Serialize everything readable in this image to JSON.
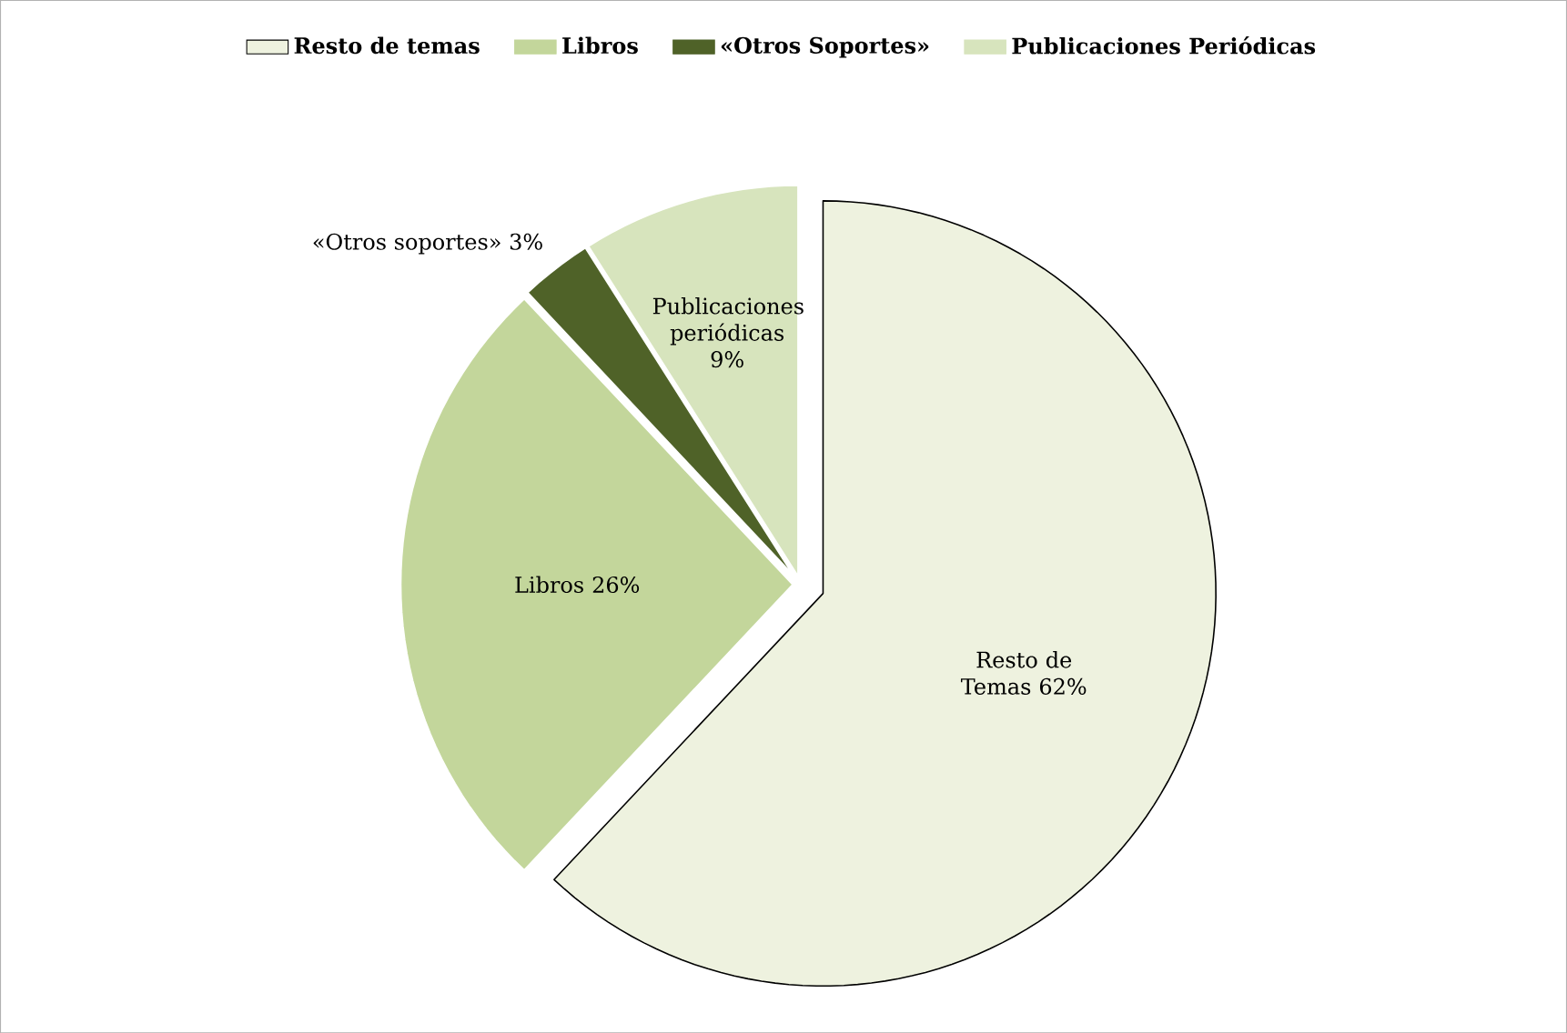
{
  "chart_data": {
    "type": "pie",
    "categories": [
      "Resto de temas",
      "Libros",
      "«Otros Soportes»",
      "Publicaciones Periódicas"
    ],
    "values": [
      62,
      26,
      3,
      9
    ],
    "colors": [
      "#eef2df",
      "#c3d69b",
      "#4f6228",
      "#d7e4bd"
    ],
    "value_labels": [
      "Resto de Temas 62%",
      "Libros 26%",
      "«Otros soportes» 3%",
      "Publicaciones periódicas 9%"
    ],
    "legend": "top"
  }
}
